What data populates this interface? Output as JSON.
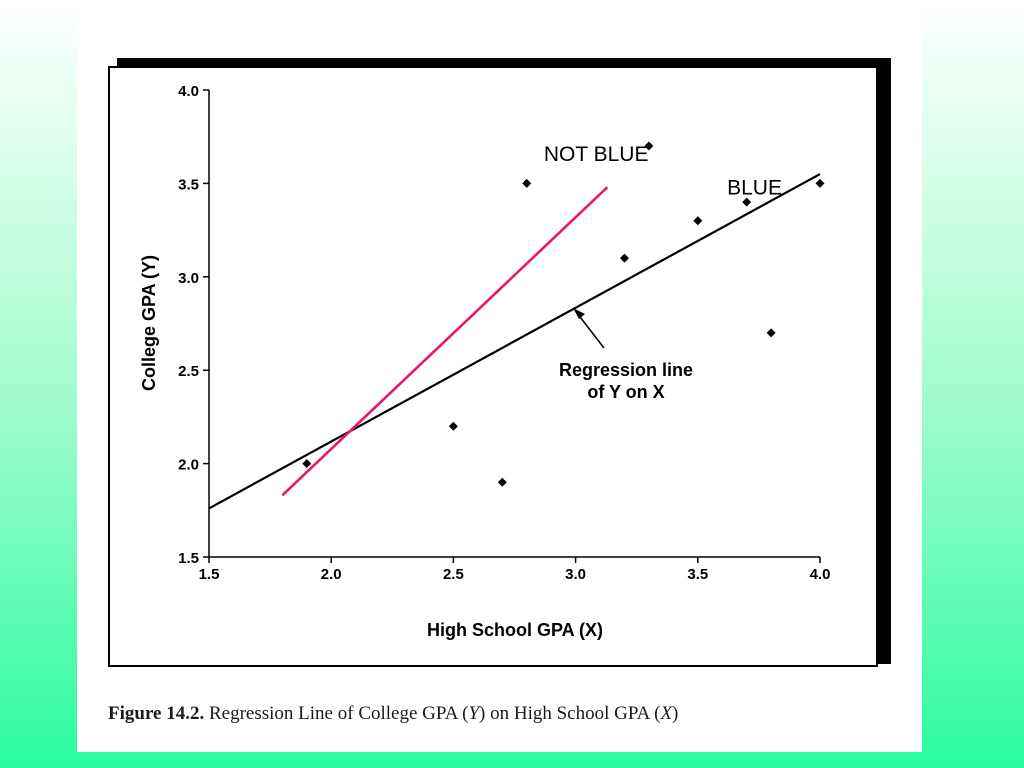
{
  "chart_data": {
    "type": "scatter",
    "xlabel": "High School GPA (X)",
    "ylabel": "College GPA (Y)",
    "xlim": [
      1.5,
      4.0
    ],
    "ylim": [
      1.5,
      4.0
    ],
    "x_ticks": [
      1.5,
      2.0,
      2.5,
      3.0,
      3.5,
      4.0
    ],
    "y_ticks": [
      1.5,
      2.0,
      2.5,
      3.0,
      3.5,
      4.0
    ],
    "x_tick_labels": [
      "1.5",
      "2.0",
      "2.5",
      "3.0",
      "3.5",
      "4.0"
    ],
    "y_tick_labels": [
      "1.5",
      "2.0",
      "2.5",
      "3.0",
      "3.5",
      "4.0"
    ],
    "grid": false,
    "points": [
      {
        "x": 1.9,
        "y": 2.0
      },
      {
        "x": 2.5,
        "y": 2.2
      },
      {
        "x": 2.7,
        "y": 1.9
      },
      {
        "x": 2.8,
        "y": 3.5
      },
      {
        "x": 3.2,
        "y": 3.1
      },
      {
        "x": 3.3,
        "y": 3.7
      },
      {
        "x": 3.5,
        "y": 3.3
      },
      {
        "x": 3.7,
        "y": 3.4
      },
      {
        "x": 3.8,
        "y": 2.7
      },
      {
        "x": 4.0,
        "y": 3.5
      }
    ],
    "regression_line": {
      "label_line1": "Regression line",
      "label_line2": "of Y on X",
      "x": [
        1.5,
        4.0
      ],
      "y": [
        1.76,
        3.55
      ],
      "color": "#000000"
    },
    "overlay_line": {
      "x": [
        1.8,
        3.13
      ],
      "y": [
        1.83,
        3.48
      ],
      "color": "#e8176e"
    },
    "annotations": [
      {
        "text": "NOT BLUE",
        "x": 2.87,
        "y": 3.62
      },
      {
        "text": "BLUE",
        "x": 3.62,
        "y": 3.44
      }
    ]
  },
  "caption": {
    "figure_number": "Figure 14.2.",
    "part1": " Regression Line of College GPA (",
    "var_y": "Y",
    "part2": ") on High School GPA (",
    "var_x": "X",
    "part3": ")"
  }
}
